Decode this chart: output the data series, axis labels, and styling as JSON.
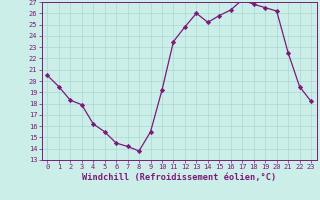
{
  "x": [
    0,
    1,
    2,
    3,
    4,
    5,
    6,
    7,
    8,
    9,
    10,
    11,
    12,
    13,
    14,
    15,
    16,
    17,
    18,
    19,
    20,
    21,
    22,
    23
  ],
  "y": [
    20.5,
    19.5,
    18.3,
    17.9,
    16.2,
    15.5,
    14.5,
    14.2,
    13.8,
    15.5,
    19.2,
    23.5,
    24.8,
    26.0,
    25.2,
    25.8,
    26.3,
    27.2,
    26.8,
    26.5,
    26.2,
    22.5,
    19.5,
    18.2
  ],
  "line_color": "#7b1a7b",
  "marker": "D",
  "marker_size": 2.2,
  "bg_color": "#cceee8",
  "grid_color": "#aad8d2",
  "xlabel": "Windchill (Refroidissement éolien,°C)",
  "ylim": [
    13,
    27
  ],
  "xlim_min": -0.5,
  "xlim_max": 23.5,
  "yticks": [
    13,
    14,
    15,
    16,
    17,
    18,
    19,
    20,
    21,
    22,
    23,
    24,
    25,
    26,
    27
  ],
  "xticks": [
    0,
    1,
    2,
    3,
    4,
    5,
    6,
    7,
    8,
    9,
    10,
    11,
    12,
    13,
    14,
    15,
    16,
    17,
    18,
    19,
    20,
    21,
    22,
    23
  ],
  "tick_fontsize": 5.0,
  "xlabel_fontsize": 6.2,
  "label_color": "#7b1a7b",
  "spine_color": "#7b1a7b",
  "linewidth": 0.9
}
